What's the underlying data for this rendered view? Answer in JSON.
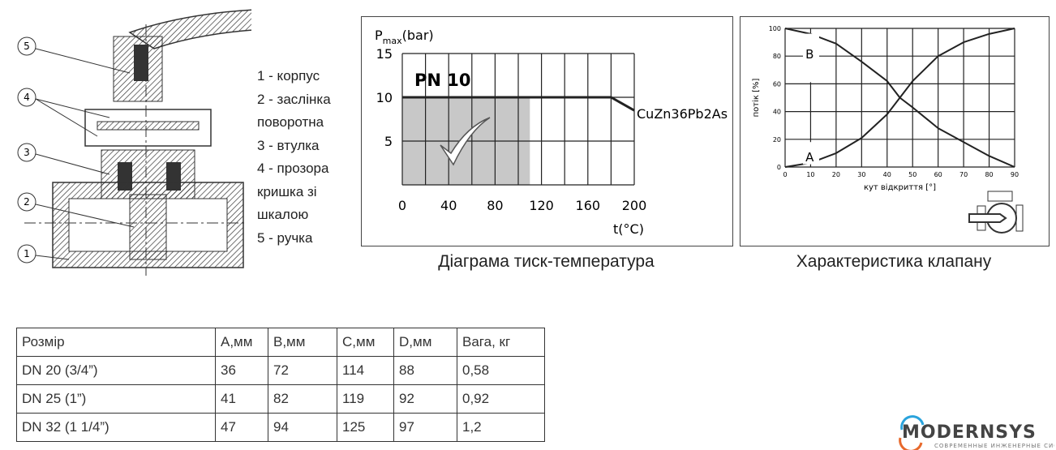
{
  "parts_legend": [
    "1 - корпус",
    "2 - заслінка",
    "поворотна",
    "3 - втулка",
    "4 - прозора",
    "кришка зі",
    "шкалою",
    "5 - ручка"
  ],
  "callouts": [
    "5",
    "4",
    "3",
    "2",
    "1"
  ],
  "captions": {
    "pressure": "Діаграма тиск-температура",
    "flow": "Характеристика клапану"
  },
  "table": {
    "headers": [
      "Розмір",
      "A,мм",
      "B,мм",
      "C,мм",
      "D,мм",
      "Вага, кг"
    ],
    "rows": [
      [
        "DN 20 (3/4”)",
        "36",
        "72",
        "114",
        "88",
        "0,58"
      ],
      [
        "DN 25 (1”)",
        "41",
        "82",
        "119",
        "92",
        "0,92"
      ],
      [
        "DN 32 (1 1/4”)",
        "47",
        "94",
        "125",
        "97",
        "1,2"
      ]
    ]
  },
  "logo": {
    "name": "MODERNSYS",
    "tagline": "СОВРЕМЕННЫЕ ИНЖЕНЕРНЫЕ СИСТЕМЫ",
    "colors": [
      "#2aa3dc",
      "#e8692c"
    ]
  },
  "chart_data": [
    {
      "type": "line",
      "ylabel": "P",
      "ylabel_sub": "max",
      "ylabel_unit": "(bar)",
      "xlabel": "t(°C)",
      "xlim": [
        0,
        200
      ],
      "ylim": [
        0,
        15
      ],
      "xticks": [
        "0",
        "40",
        "80",
        "120",
        "160",
        "200"
      ],
      "yticks": [
        "5",
        "10",
        "15"
      ],
      "grid": true,
      "badge": "PN 10",
      "series": [
        {
          "name": "CuZn36Pb2As",
          "x": [
            0,
            180,
            200
          ],
          "y": [
            10,
            10,
            8.5
          ]
        }
      ],
      "shaded_region": {
        "x": [
          0,
          110
        ],
        "y": [
          0,
          10
        ],
        "color": "#c8c8c8"
      },
      "annotation": "check-mark"
    },
    {
      "type": "line",
      "ylabel": "потік [%]",
      "xlabel": "кут відкриття [°]",
      "xlim": [
        0,
        90
      ],
      "ylim": [
        0,
        100
      ],
      "xticks": [
        "0",
        "10",
        "20",
        "30",
        "40",
        "50",
        "60",
        "70",
        "80",
        "90"
      ],
      "yticks": [
        "0",
        "20",
        "40",
        "60",
        "80",
        "100"
      ],
      "grid": true,
      "series": [
        {
          "name": "A",
          "x": [
            0,
            10,
            20,
            30,
            40,
            45,
            50,
            60,
            70,
            80,
            90
          ],
          "y": [
            0,
            3,
            10,
            21,
            38,
            50,
            62,
            80,
            90,
            96,
            100
          ]
        },
        {
          "name": "B",
          "x": [
            0,
            10,
            20,
            30,
            40,
            45,
            50,
            60,
            70,
            80,
            90
          ],
          "y": [
            100,
            96,
            89,
            76,
            62,
            50,
            43,
            28,
            18,
            8,
            0
          ]
        }
      ]
    }
  ]
}
